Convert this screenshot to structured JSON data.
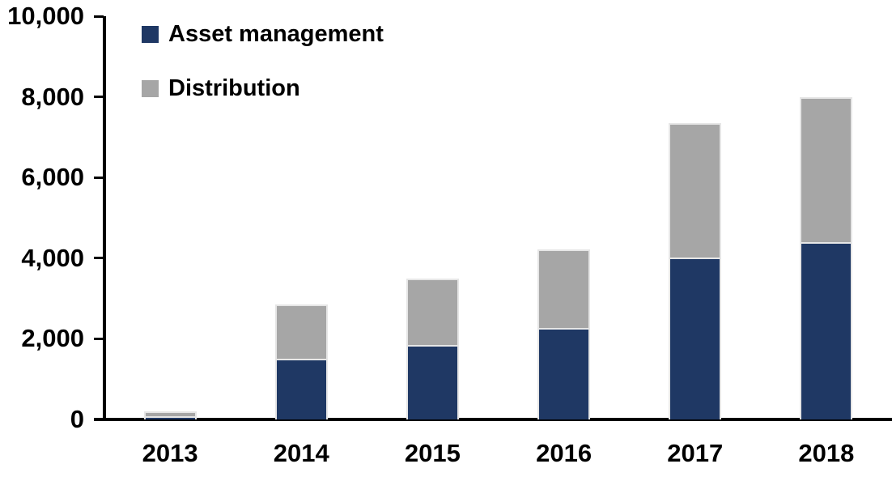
{
  "chart_data": {
    "type": "bar",
    "stacked": true,
    "title": "",
    "xlabel": "",
    "ylabel": "",
    "categories": [
      "2013",
      "2014",
      "2015",
      "2016",
      "2017",
      "2018"
    ],
    "series": [
      {
        "name": "Asset management",
        "color": "#1F3864",
        "values": [
          80,
          1510,
          1850,
          2270,
          4020,
          4400
        ]
      },
      {
        "name": "Distribution",
        "color": "#A6A6A6",
        "values": [
          120,
          1340,
          1650,
          1950,
          3330,
          3600
        ]
      }
    ],
    "ylim": [
      0,
      10000
    ],
    "ytick_values": [
      0,
      2000,
      4000,
      6000,
      8000,
      10000
    ],
    "ytick_labels": [
      "0",
      "2,000",
      "4,000",
      "6,000",
      "8,000",
      "10,000"
    ],
    "legend_position": "top-left",
    "grid": false,
    "axis_color": "#000000",
    "background_color": "#ffffff",
    "bar_border_color": "#e6e6e6"
  }
}
